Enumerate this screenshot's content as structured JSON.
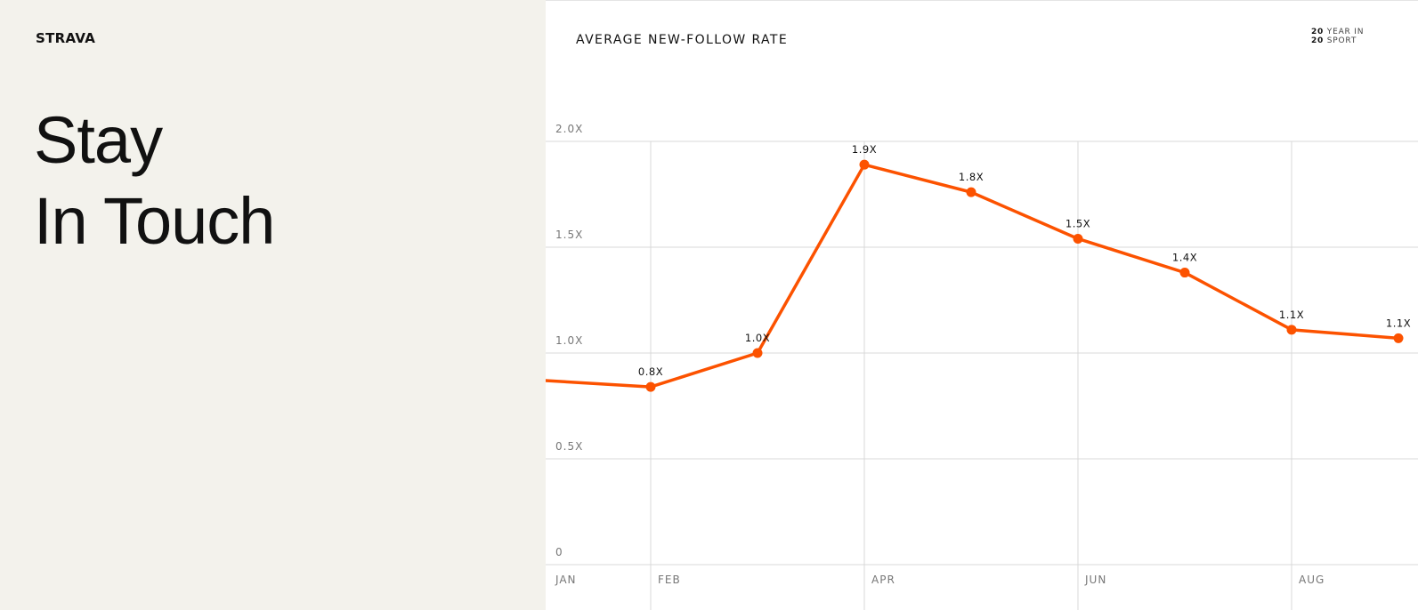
{
  "brand": {
    "logo_text": "STRAVA"
  },
  "headline": {
    "line1": "Stay",
    "line2": "In Touch"
  },
  "badge": {
    "num1": "20",
    "text1": "YEAR IN",
    "num2": "20",
    "text2": "SPORT"
  },
  "colors": {
    "line": "#fc5200",
    "grid": "#d9d9d9",
    "left_panel": "#f3f2ec"
  },
  "chart_data": {
    "type": "line",
    "title": "AVERAGE NEW-FOLLOW RATE",
    "xlabel": "",
    "ylabel": "",
    "ylim": [
      0,
      2.0
    ],
    "y_ticks": [
      {
        "value": 0,
        "label": "0"
      },
      {
        "value": 0.5,
        "label": "0.5X"
      },
      {
        "value": 1.0,
        "label": "1.0X"
      },
      {
        "value": 1.5,
        "label": "1.5X"
      },
      {
        "value": 2.0,
        "label": "2.0X"
      }
    ],
    "x_ticks": [
      {
        "month": 1,
        "label": "JAN"
      },
      {
        "month": 2,
        "label": "FEB"
      },
      {
        "month": 4,
        "label": "APR"
      },
      {
        "month": 6,
        "label": "JUN"
      },
      {
        "month": 8,
        "label": "AUG"
      }
    ],
    "grid": true,
    "series": [
      {
        "points": [
          {
            "month": 1,
            "value": 0.87
          },
          {
            "month": 2,
            "value": 0.84,
            "label": "0.8X"
          },
          {
            "month": 3,
            "value": 1.0,
            "label": "1.0X"
          },
          {
            "month": 4,
            "value": 1.89,
            "label": "1.9X"
          },
          {
            "month": 5,
            "value": 1.76,
            "label": "1.8X"
          },
          {
            "month": 6,
            "value": 1.54,
            "label": "1.5X"
          },
          {
            "month": 7,
            "value": 1.38,
            "label": "1.4X"
          },
          {
            "month": 8,
            "value": 1.11,
            "label": "1.1X"
          },
          {
            "month": 9,
            "value": 1.07,
            "label": "1.1X"
          }
        ]
      }
    ]
  }
}
